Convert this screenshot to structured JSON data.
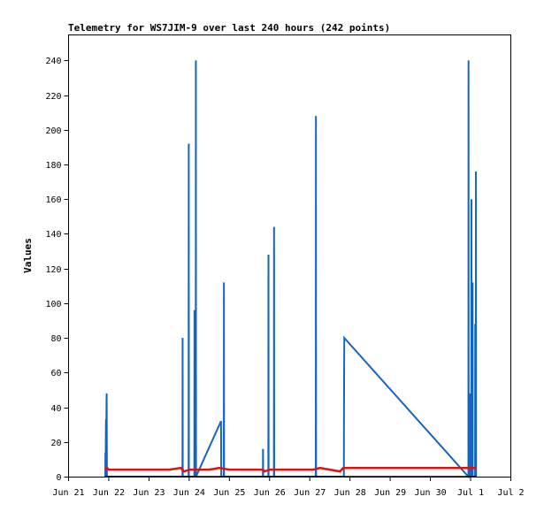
{
  "chart_data": {
    "type": "line",
    "title": "Telemetry for WS7JIM-9 over last 240 hours (242 points)",
    "ylabel": "Values",
    "xlabel": "",
    "x_ticks": [
      "Jun 21",
      "Jun 22",
      "Jun 23",
      "Jun 24",
      "Jun 25",
      "Jun 26",
      "Jun 27",
      "Jun 28",
      "Jun 29",
      "Jun 30",
      "Jul 1",
      "Jul 2"
    ],
    "xlim": [
      "2024-06-21T00:00",
      "2024-07-02T00:00"
    ],
    "y_ticks": [
      0,
      20,
      40,
      60,
      80,
      100,
      120,
      140,
      160,
      180,
      200,
      220,
      240
    ],
    "ylim": [
      0,
      255
    ],
    "grid": false,
    "colors": {
      "series_1": "#1565c0",
      "series_2": "#e01010",
      "series_3": "#000000"
    },
    "series": [
      {
        "values": [
          [
            "2024-06-21T21:55",
            0
          ],
          [
            "2024-06-21T22:00",
            14
          ],
          [
            "2024-06-21T22:05",
            0
          ],
          [
            "2024-06-21T22:20",
            33
          ],
          [
            "2024-06-21T22:30",
            24
          ],
          [
            "2024-06-21T22:40",
            43
          ],
          [
            "2024-06-21T22:45",
            48
          ],
          [
            "2024-06-21T22:55",
            0
          ],
          [
            "2024-06-23T20:00",
            0
          ],
          [
            "2024-06-23T20:05",
            80
          ],
          [
            "2024-06-23T20:10",
            0
          ],
          [
            "2024-06-23T23:40",
            0
          ],
          [
            "2024-06-23T23:45",
            192
          ],
          [
            "2024-06-23T23:50",
            0
          ],
          [
            "2024-06-24T03:05",
            0
          ],
          [
            "2024-06-24T03:10",
            96
          ],
          [
            "2024-06-24T03:15",
            0
          ],
          [
            "2024-06-24T03:55",
            0
          ],
          [
            "2024-06-24T04:00",
            240
          ],
          [
            "2024-06-24T04:05",
            0
          ],
          [
            "2024-06-24T19:00",
            32
          ],
          [
            "2024-06-24T19:10",
            0
          ],
          [
            "2024-06-24T20:40",
            0
          ],
          [
            "2024-06-24T20:45",
            112
          ],
          [
            "2024-06-24T20:50",
            0
          ],
          [
            "2024-06-25T20:00",
            0
          ],
          [
            "2024-06-25T20:05",
            16
          ],
          [
            "2024-06-25T20:10",
            0
          ],
          [
            "2024-06-25T23:15",
            0
          ],
          [
            "2024-06-25T23:20",
            128
          ],
          [
            "2024-06-25T23:25",
            0
          ],
          [
            "2024-06-26T02:35",
            0
          ],
          [
            "2024-06-26T02:40",
            144
          ],
          [
            "2024-06-26T02:45",
            0
          ],
          [
            "2024-06-27T03:35",
            0
          ],
          [
            "2024-06-27T03:40",
            208
          ],
          [
            "2024-06-27T03:45",
            0
          ],
          [
            "2024-06-27T20:20",
            0
          ],
          [
            "2024-06-27T20:25",
            40
          ],
          [
            "2024-06-27T20:35",
            80
          ],
          [
            "2024-06-30T22:40",
            0
          ],
          [
            "2024-06-30T22:45",
            240
          ],
          [
            "2024-06-30T22:50",
            0
          ],
          [
            "2024-06-30T23:20",
            0
          ],
          [
            "2024-06-30T23:25",
            48
          ],
          [
            "2024-06-30T23:30",
            0
          ],
          [
            "2024-07-01T00:25",
            0
          ],
          [
            "2024-07-01T00:30",
            160
          ],
          [
            "2024-07-01T00:35",
            0
          ],
          [
            "2024-07-01T01:05",
            0
          ],
          [
            "2024-07-01T01:10",
            112
          ],
          [
            "2024-07-01T01:15",
            0
          ],
          [
            "2024-07-01T02:40",
            0
          ],
          [
            "2024-07-01T02:45",
            88
          ],
          [
            "2024-07-01T02:50",
            0
          ],
          [
            "2024-07-01T03:05",
            0
          ],
          [
            "2024-07-01T03:10",
            176
          ],
          [
            "2024-07-01T03:15",
            0
          ]
        ]
      },
      {
        "values": [
          [
            "2024-06-21T21:45",
            4
          ],
          [
            "2024-06-21T23:00",
            5
          ],
          [
            "2024-06-22T00:00",
            4
          ],
          [
            "2024-06-22T12:00",
            4
          ],
          [
            "2024-06-23T12:00",
            4
          ],
          [
            "2024-06-23T19:00",
            5
          ],
          [
            "2024-06-23T21:00",
            3
          ],
          [
            "2024-06-24T00:00",
            4
          ],
          [
            "2024-06-24T06:00",
            4
          ],
          [
            "2024-06-24T12:00",
            4
          ],
          [
            "2024-06-24T18:00",
            5
          ],
          [
            "2024-06-25T00:00",
            4
          ],
          [
            "2024-06-25T20:00",
            4
          ],
          [
            "2024-06-25T21:00",
            3
          ],
          [
            "2024-06-26T00:00",
            4
          ],
          [
            "2024-06-26T12:00",
            4
          ],
          [
            "2024-06-27T02:00",
            4
          ],
          [
            "2024-06-27T06:00",
            5
          ],
          [
            "2024-06-27T12:00",
            4
          ],
          [
            "2024-06-27T18:00",
            3
          ],
          [
            "2024-06-27T20:00",
            5
          ],
          [
            "2024-06-28T12:00",
            5
          ],
          [
            "2024-06-29T12:00",
            5
          ],
          [
            "2024-06-30T12:00",
            5
          ],
          [
            "2024-07-01T03:30",
            5
          ]
        ]
      },
      {
        "values": [
          [
            "2024-06-21T21:45",
            0
          ],
          [
            "2024-07-01T03:30",
            0
          ]
        ]
      }
    ]
  }
}
